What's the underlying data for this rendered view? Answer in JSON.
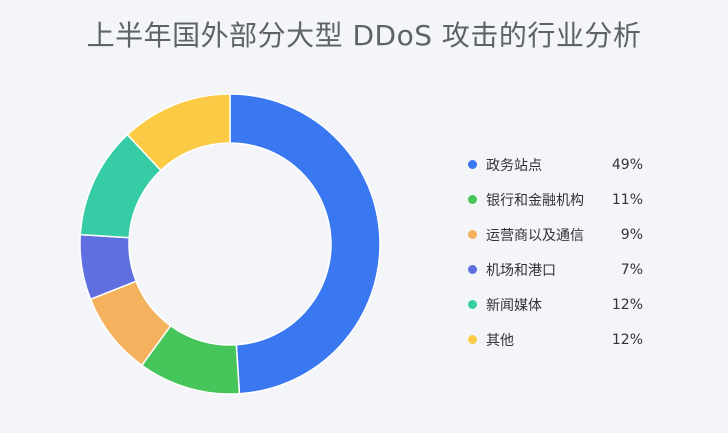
{
  "chart_data": {
    "type": "pie",
    "title": "上半年国外部分大型 DDoS 攻击的行业分析",
    "legend_placement": "right",
    "series": [
      {
        "name": "政务站点",
        "value": 49,
        "label": "49%",
        "color": "#3a78f2"
      },
      {
        "name": "银行和金融机构",
        "value": 11,
        "label": "11%",
        "color": "#46c65a"
      },
      {
        "name": "运营商以及通信",
        "value": 9,
        "label": "9%",
        "color": "#f5b25e"
      },
      {
        "name": "机场和港口",
        "value": 7,
        "label": "7%",
        "color": "#5f6fe0"
      },
      {
        "name": "新闻媒体",
        "value": 12,
        "label": "12%",
        "color": "#36cca6"
      },
      {
        "name": "其他",
        "value": 12,
        "label": "12%",
        "color": "#fccb45"
      }
    ]
  }
}
